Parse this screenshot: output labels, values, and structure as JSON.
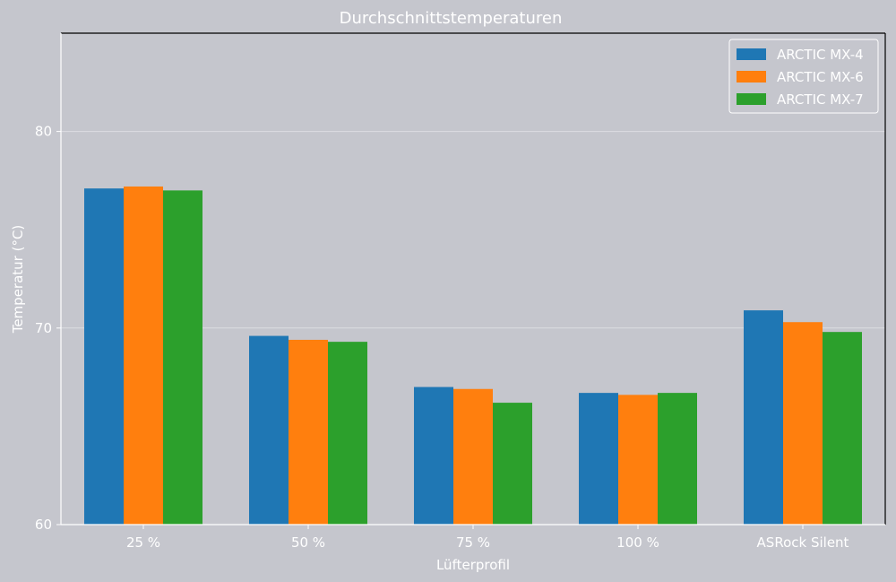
{
  "chart_data": {
    "type": "bar",
    "title": "Durchschnittstemperaturen",
    "xlabel": "Lüfterprofil",
    "ylabel": "Temperatur (°C)",
    "categories": [
      "25 %",
      "50 %",
      "75 %",
      "100 %",
      "ASRock Silent"
    ],
    "series": [
      {
        "name": "ARCTIC MX-4",
        "color": "#1f77b4",
        "values": [
          77.1,
          69.6,
          67.0,
          66.7,
          70.9
        ]
      },
      {
        "name": "ARCTIC MX-6",
        "color": "#ff7f0e",
        "values": [
          77.2,
          69.4,
          66.9,
          66.6,
          70.3
        ]
      },
      {
        "name": "ARCTIC MX-7",
        "color": "#2ca02c",
        "values": [
          77.0,
          69.3,
          66.2,
          66.7,
          69.8
        ]
      }
    ],
    "ylim": [
      60,
      85
    ],
    "yticks": [
      60,
      70,
      80
    ],
    "grid": true,
    "legend_position": "top-right",
    "colors": {
      "background": "#c5c6cd",
      "grid": "#dcdde2",
      "text": "#ffffff"
    }
  }
}
